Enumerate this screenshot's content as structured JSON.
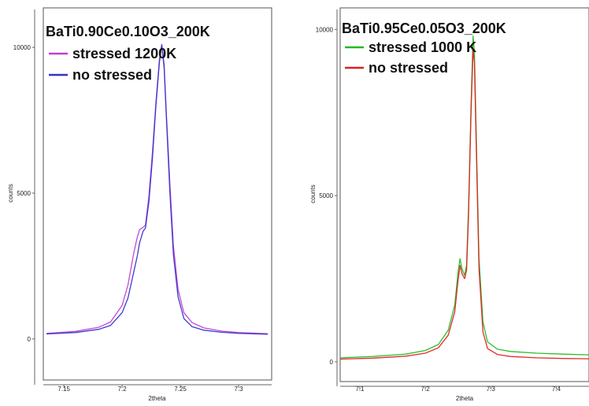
{
  "chart_data": [
    {
      "type": "line",
      "title": "BaTi0.90Ce0.10O3_200K",
      "xlabel": "2theta",
      "ylabel": "counts",
      "xlim": [
        7.135,
        7.325
      ],
      "ylim": [
        -1300,
        11300
      ],
      "xticks": [
        7.15,
        7.2,
        7.25,
        7.3
      ],
      "xtick_labels": [
        "7.15",
        "7.2",
        "7.25",
        "7.3"
      ],
      "yticks": [
        0,
        5000,
        10000
      ],
      "ytick_labels": [
        "0",
        "5000",
        "10000"
      ],
      "legend": "top-left",
      "grid": false,
      "series": [
        {
          "name": "stressed 1200K",
          "color": "#c040d0",
          "x": [
            7.135,
            7.16,
            7.18,
            7.19,
            7.2,
            7.205,
            7.21,
            7.213,
            7.215,
            7.218,
            7.22,
            7.223,
            7.226,
            7.229,
            7.232,
            7.234,
            7.236,
            7.238,
            7.241,
            7.244,
            7.248,
            7.253,
            7.26,
            7.27,
            7.285,
            7.3,
            7.325
          ],
          "y": [
            190,
            260,
            400,
            580,
            1150,
            1850,
            2950,
            3500,
            3750,
            3830,
            3900,
            4900,
            6400,
            8100,
            9600,
            10050,
            9300,
            7700,
            5300,
            3200,
            1700,
            900,
            560,
            380,
            270,
            220,
            180
          ]
        },
        {
          "name": "no stressed",
          "color": "#3333cc",
          "x": [
            7.135,
            7.16,
            7.18,
            7.19,
            7.2,
            7.205,
            7.21,
            7.213,
            7.215,
            7.218,
            7.22,
            7.223,
            7.226,
            7.229,
            7.232,
            7.234,
            7.236,
            7.238,
            7.241,
            7.244,
            7.248,
            7.253,
            7.26,
            7.27,
            7.285,
            7.3,
            7.325
          ],
          "y": [
            170,
            220,
            330,
            460,
            900,
            1400,
            2300,
            2850,
            3300,
            3700,
            3800,
            4700,
            6200,
            8000,
            9500,
            10100,
            9400,
            7600,
            5000,
            2900,
            1450,
            700,
            420,
            300,
            230,
            190,
            160
          ]
        }
      ]
    },
    {
      "type": "line",
      "title": "BaTi0.95Ce0.05O3_200K",
      "xlabel": "2theta",
      "ylabel": "counts",
      "xlim": [
        7.07,
        7.45
      ],
      "ylim": [
        -500,
        10600
      ],
      "xticks": [
        7.1,
        7.2,
        7.3,
        7.4
      ],
      "xtick_labels": [
        "7.1",
        "7.2",
        "7.3",
        "7.4"
      ],
      "yticks": [
        0,
        5000,
        10000
      ],
      "ytick_labels": [
        "0",
        "5000",
        "10000"
      ],
      "legend": "top-left",
      "grid": false,
      "series": [
        {
          "name": "stressed 1000 K",
          "color": "#22bb22",
          "x": [
            7.07,
            7.12,
            7.17,
            7.2,
            7.22,
            7.235,
            7.245,
            7.25,
            7.253,
            7.256,
            7.26,
            7.263,
            7.266,
            7.27,
            7.273,
            7.275,
            7.278,
            7.282,
            7.288,
            7.295,
            7.31,
            7.33,
            7.37,
            7.41,
            7.45
          ],
          "y": [
            120,
            160,
            230,
            340,
            520,
            950,
            1700,
            2700,
            3100,
            2800,
            2600,
            2900,
            4600,
            7800,
            9800,
            9300,
            6600,
            3100,
            1200,
            600,
            380,
            310,
            260,
            230,
            210
          ]
        },
        {
          "name": "no stressed",
          "color": "#e02020",
          "x": [
            7.07,
            7.12,
            7.17,
            7.2,
            7.22,
            7.235,
            7.245,
            7.25,
            7.253,
            7.256,
            7.26,
            7.263,
            7.266,
            7.27,
            7.273,
            7.275,
            7.278,
            7.282,
            7.288,
            7.295,
            7.31,
            7.33,
            7.37,
            7.41,
            7.45
          ],
          "y": [
            80,
            110,
            170,
            260,
            420,
            800,
            1500,
            2450,
            2900,
            2650,
            2500,
            2750,
            4400,
            7600,
            9400,
            9000,
            6300,
            2800,
            900,
            400,
            220,
            160,
            120,
            100,
            90
          ]
        }
      ]
    }
  ]
}
